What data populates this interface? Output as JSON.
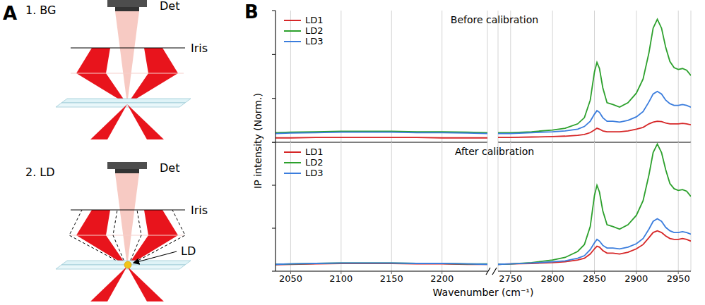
{
  "diagram": {
    "label": "A",
    "steps": [
      "1. BG",
      "2. LD"
    ],
    "detector": "Det",
    "iris": "Iris",
    "droplet": "LD"
  },
  "chart_data": {
    "label": "B",
    "type": "line",
    "xlabel": "Wavenumber (cm⁻¹)",
    "ylabel": "IP intensity (Norm.)",
    "panels": [
      {
        "title": "Before calibration",
        "legend": "upper left",
        "grid": true,
        "tick_labels": false,
        "ylim": [
          0,
          1.5
        ],
        "yticks": [
          0,
          0.5,
          1,
          1.5
        ],
        "segments": [
          {
            "xlim": [
              2035,
              2245
            ],
            "xticks": [
              2050,
              2100,
              2150,
              2200
            ],
            "x": [
              2035,
              2050,
              2075,
              2100,
              2125,
              2150,
              2175,
              2200,
              2225,
              2245
            ],
            "series": [
              {
                "name": "LD1",
                "color": "#d62728",
                "values": [
                  0.05,
                  0.05,
                  0.055,
                  0.055,
                  0.055,
                  0.055,
                  0.055,
                  0.05,
                  0.05,
                  0.05
                ]
              },
              {
                "name": "LD2",
                "color": "#2ca02c",
                "values": [
                  0.11,
                  0.115,
                  0.12,
                  0.125,
                  0.125,
                  0.125,
                  0.12,
                  0.12,
                  0.115,
                  0.11
                ]
              },
              {
                "name": "LD3",
                "color": "#3b7ddd",
                "values": [
                  0.1,
                  0.105,
                  0.11,
                  0.115,
                  0.115,
                  0.115,
                  0.11,
                  0.11,
                  0.105,
                  0.1
                ]
              }
            ]
          },
          {
            "xlim": [
              2735,
              2965
            ],
            "xticks": [
              2750,
              2800,
              2850,
              2900,
              2950
            ],
            "x": [
              2735,
              2750,
              2775,
              2800,
              2815,
              2830,
              2838,
              2845,
              2850,
              2853,
              2856,
              2860,
              2865,
              2872,
              2880,
              2890,
              2900,
              2908,
              2915,
              2920,
              2925,
              2930,
              2935,
              2940,
              2945,
              2950,
              2955,
              2960,
              2965
            ],
            "series": [
              {
                "name": "LD1",
                "color": "#d62728",
                "values": [
                  0.055,
                  0.055,
                  0.06,
                  0.065,
                  0.07,
                  0.08,
                  0.09,
                  0.11,
                  0.14,
                  0.16,
                  0.15,
                  0.13,
                  0.12,
                  0.12,
                  0.12,
                  0.13,
                  0.15,
                  0.17,
                  0.21,
                  0.23,
                  0.24,
                  0.235,
                  0.22,
                  0.21,
                  0.21,
                  0.21,
                  0.215,
                  0.21,
                  0.2
                ]
              },
              {
                "name": "LD2",
                "color": "#2ca02c",
                "values": [
                  0.11,
                  0.11,
                  0.12,
                  0.14,
                  0.16,
                  0.21,
                  0.28,
                  0.48,
                  0.8,
                  0.91,
                  0.84,
                  0.62,
                  0.45,
                  0.43,
                  0.4,
                  0.45,
                  0.56,
                  0.72,
                  1.02,
                  1.3,
                  1.4,
                  1.3,
                  1.08,
                  0.92,
                  0.85,
                  0.83,
                  0.84,
                  0.82,
                  0.76
                ]
              },
              {
                "name": "LD3",
                "color": "#3b7ddd",
                "values": [
                  0.1,
                  0.1,
                  0.11,
                  0.12,
                  0.13,
                  0.15,
                  0.18,
                  0.24,
                  0.32,
                  0.36,
                  0.34,
                  0.28,
                  0.24,
                  0.24,
                  0.23,
                  0.25,
                  0.29,
                  0.35,
                  0.46,
                  0.55,
                  0.58,
                  0.55,
                  0.48,
                  0.44,
                  0.42,
                  0.42,
                  0.43,
                  0.42,
                  0.4
                ]
              }
            ]
          }
        ]
      },
      {
        "title": "After calibration",
        "legend": "upper left",
        "grid": true,
        "tick_labels": "x",
        "ylim": [
          0,
          1.5
        ],
        "yticks": [
          0,
          0.5,
          1,
          1.5
        ],
        "segments": [
          {
            "xlim": [
              2035,
              2245
            ],
            "xticks": [
              2050,
              2100,
              2150,
              2200
            ],
            "x": [
              2035,
              2050,
              2075,
              2100,
              2125,
              2150,
              2175,
              2200,
              2225,
              2245
            ],
            "series": [
              {
                "name": "LD1",
                "color": "#d62728",
                "values": [
                  0.075,
                  0.08,
                  0.085,
                  0.09,
                  0.09,
                  0.09,
                  0.085,
                  0.085,
                  0.08,
                  0.08
                ]
              },
              {
                "name": "LD2",
                "color": "#2ca02c",
                "values": [
                  0.08,
                  0.085,
                  0.09,
                  0.095,
                  0.095,
                  0.095,
                  0.09,
                  0.09,
                  0.085,
                  0.085
                ]
              },
              {
                "name": "LD3",
                "color": "#3b7ddd",
                "values": [
                  0.08,
                  0.085,
                  0.09,
                  0.095,
                  0.095,
                  0.095,
                  0.09,
                  0.09,
                  0.085,
                  0.08
                ]
              }
            ]
          },
          {
            "xlim": [
              2735,
              2965
            ],
            "xticks": [
              2750,
              2800,
              2850,
              2900,
              2950
            ],
            "x": [
              2735,
              2750,
              2775,
              2800,
              2815,
              2830,
              2838,
              2845,
              2850,
              2853,
              2856,
              2860,
              2865,
              2872,
              2880,
              2890,
              2900,
              2908,
              2915,
              2920,
              2925,
              2930,
              2935,
              2940,
              2945,
              2950,
              2955,
              2960,
              2965
            ],
            "series": [
              {
                "name": "LD1",
                "color": "#d62728",
                "values": [
                  0.08,
                  0.085,
                  0.09,
                  0.1,
                  0.11,
                  0.13,
                  0.15,
                  0.2,
                  0.26,
                  0.29,
                  0.28,
                  0.24,
                  0.21,
                  0.21,
                  0.2,
                  0.22,
                  0.26,
                  0.31,
                  0.39,
                  0.45,
                  0.47,
                  0.45,
                  0.41,
                  0.38,
                  0.37,
                  0.37,
                  0.38,
                  0.37,
                  0.35
                ]
              },
              {
                "name": "LD2",
                "color": "#2ca02c",
                "values": [
                  0.08,
                  0.085,
                  0.1,
                  0.13,
                  0.16,
                  0.23,
                  0.31,
                  0.52,
                  0.88,
                  1.0,
                  0.92,
                  0.7,
                  0.54,
                  0.52,
                  0.49,
                  0.54,
                  0.65,
                  0.82,
                  1.12,
                  1.38,
                  1.48,
                  1.38,
                  1.18,
                  1.02,
                  0.96,
                  0.94,
                  0.95,
                  0.93,
                  0.87
                ]
              },
              {
                "name": "LD3",
                "color": "#3b7ddd",
                "values": [
                  0.08,
                  0.085,
                  0.095,
                  0.11,
                  0.12,
                  0.15,
                  0.18,
                  0.25,
                  0.33,
                  0.37,
                  0.35,
                  0.3,
                  0.27,
                  0.27,
                  0.26,
                  0.28,
                  0.32,
                  0.38,
                  0.49,
                  0.58,
                  0.61,
                  0.58,
                  0.51,
                  0.47,
                  0.45,
                  0.45,
                  0.46,
                  0.45,
                  0.43
                ]
              }
            ]
          }
        ]
      }
    ]
  }
}
